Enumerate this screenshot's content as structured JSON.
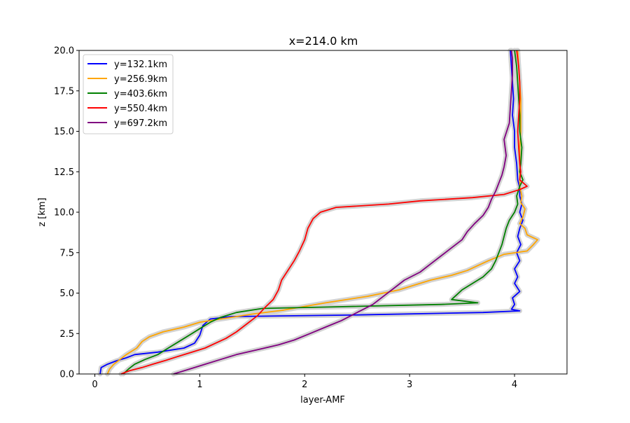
{
  "chart_data": {
    "type": "line",
    "title": "x=214.0 km",
    "xlabel": "layer-AMF",
    "ylabel": "z [km]",
    "xlim": [
      -0.15,
      4.5
    ],
    "ylim": [
      0,
      20
    ],
    "xticks": [
      0,
      1,
      2,
      3,
      4
    ],
    "xtick_labels": [
      "0",
      "1",
      "2",
      "3",
      "4"
    ],
    "yticks": [
      0,
      2.5,
      5,
      7.5,
      10,
      12.5,
      15,
      17.5,
      20
    ],
    "ytick_labels": [
      "0.0",
      "2.5",
      "5.0",
      "7.5",
      "10.0",
      "12.5",
      "15.0",
      "17.5",
      "20.0"
    ],
    "grid": false,
    "legend_position": "top-left",
    "uncertainty_band_color": "#d3d3d3",
    "series": [
      {
        "name": "y=132.1km",
        "color": "#0000ff",
        "points": [
          [
            0.05,
            0
          ],
          [
            0.06,
            0.4
          ],
          [
            0.12,
            0.6
          ],
          [
            0.2,
            0.8
          ],
          [
            0.3,
            1.0
          ],
          [
            0.38,
            1.2
          ],
          [
            0.6,
            1.35
          ],
          [
            0.85,
            1.6
          ],
          [
            0.95,
            1.9
          ],
          [
            1.0,
            2.4
          ],
          [
            1.03,
            3.0
          ],
          [
            1.1,
            3.4
          ],
          [
            1.3,
            3.55
          ],
          [
            2.5,
            3.65
          ],
          [
            3.7,
            3.8
          ],
          [
            4.05,
            3.9
          ],
          [
            3.97,
            4.0
          ],
          [
            4.0,
            4.3
          ],
          [
            3.98,
            4.7
          ],
          [
            4.05,
            5.1
          ],
          [
            4.0,
            5.6
          ],
          [
            4.03,
            6.0
          ],
          [
            4.0,
            6.5
          ],
          [
            4.05,
            7.0
          ],
          [
            4.02,
            7.5
          ],
          [
            4.06,
            8.0
          ],
          [
            4.03,
            8.5
          ],
          [
            4.05,
            9.0
          ],
          [
            4.08,
            9.5
          ],
          [
            4.05,
            10.0
          ],
          [
            4.07,
            10.5
          ],
          [
            4.05,
            11.0
          ],
          [
            4.05,
            11.5
          ],
          [
            4.03,
            12.0
          ],
          [
            4.02,
            13.0
          ],
          [
            4.0,
            14.0
          ],
          [
            4.0,
            15.0
          ],
          [
            3.98,
            16.0
          ],
          [
            3.99,
            17.0
          ],
          [
            3.98,
            18.0
          ],
          [
            3.97,
            19.0
          ],
          [
            3.96,
            20.0
          ]
        ]
      },
      {
        "name": "y=256.9km",
        "color": "#ffa500",
        "points": [
          [
            0.12,
            0
          ],
          [
            0.14,
            0.3
          ],
          [
            0.18,
            0.6
          ],
          [
            0.24,
            0.9
          ],
          [
            0.3,
            1.2
          ],
          [
            0.4,
            1.6
          ],
          [
            0.45,
            2.0
          ],
          [
            0.52,
            2.3
          ],
          [
            0.65,
            2.6
          ],
          [
            0.85,
            2.9
          ],
          [
            1.0,
            3.2
          ],
          [
            1.2,
            3.4
          ],
          [
            1.5,
            3.7
          ],
          [
            1.8,
            3.95
          ],
          [
            2.2,
            4.4
          ],
          [
            2.6,
            4.8
          ],
          [
            2.9,
            5.2
          ],
          [
            3.05,
            5.5
          ],
          [
            3.2,
            5.8
          ],
          [
            3.4,
            6.1
          ],
          [
            3.55,
            6.4
          ],
          [
            3.65,
            6.7
          ],
          [
            3.75,
            7.0
          ],
          [
            3.9,
            7.4
          ],
          [
            4.12,
            7.6
          ],
          [
            4.18,
            8.0
          ],
          [
            4.22,
            8.3
          ],
          [
            4.12,
            8.6
          ],
          [
            4.1,
            9.0
          ],
          [
            4.05,
            9.3
          ],
          [
            4.08,
            9.7
          ],
          [
            4.1,
            10.2
          ],
          [
            4.06,
            10.6
          ],
          [
            4.07,
            11.0
          ],
          [
            4.05,
            11.6
          ],
          [
            4.05,
            12.0
          ],
          [
            4.05,
            13.0
          ],
          [
            4.05,
            14.0
          ],
          [
            4.06,
            15.0
          ],
          [
            4.06,
            16.0
          ],
          [
            4.06,
            17.0
          ],
          [
            4.05,
            18.0
          ],
          [
            4.04,
            19.0
          ],
          [
            4.03,
            20.0
          ]
        ]
      },
      {
        "name": "y=403.6km",
        "color": "#008000",
        "points": [
          [
            0.27,
            0
          ],
          [
            0.32,
            0.3
          ],
          [
            0.38,
            0.6
          ],
          [
            0.48,
            0.9
          ],
          [
            0.6,
            1.2
          ],
          [
            0.7,
            1.6
          ],
          [
            0.8,
            2.0
          ],
          [
            0.9,
            2.4
          ],
          [
            1.0,
            2.8
          ],
          [
            1.1,
            3.2
          ],
          [
            1.2,
            3.5
          ],
          [
            1.35,
            3.8
          ],
          [
            1.6,
            4.05
          ],
          [
            2.3,
            4.15
          ],
          [
            3.3,
            4.3
          ],
          [
            3.65,
            4.4
          ],
          [
            3.4,
            4.6
          ],
          [
            3.45,
            4.9
          ],
          [
            3.5,
            5.2
          ],
          [
            3.6,
            5.6
          ],
          [
            3.7,
            6.0
          ],
          [
            3.78,
            6.5
          ],
          [
            3.82,
            7.0
          ],
          [
            3.85,
            7.5
          ],
          [
            3.88,
            8.0
          ],
          [
            3.9,
            8.5
          ],
          [
            3.92,
            9.0
          ],
          [
            3.95,
            9.5
          ],
          [
            4.0,
            10.0
          ],
          [
            4.03,
            10.5
          ],
          [
            4.02,
            11.0
          ],
          [
            4.05,
            11.6
          ],
          [
            4.08,
            12.0
          ],
          [
            4.05,
            12.5
          ],
          [
            4.06,
            13.0
          ],
          [
            4.07,
            14.0
          ],
          [
            4.05,
            15.0
          ],
          [
            4.05,
            16.0
          ],
          [
            4.04,
            17.0
          ],
          [
            4.03,
            18.0
          ],
          [
            4.02,
            19.0
          ],
          [
            4.0,
            20.0
          ]
        ]
      },
      {
        "name": "y=550.4km",
        "color": "#ff0000",
        "points": [
          [
            0.25,
            0
          ],
          [
            0.33,
            0.2
          ],
          [
            0.45,
            0.4
          ],
          [
            0.55,
            0.6
          ],
          [
            0.68,
            0.85
          ],
          [
            0.8,
            1.1
          ],
          [
            0.9,
            1.3
          ],
          [
            1.05,
            1.6
          ],
          [
            1.15,
            1.9
          ],
          [
            1.25,
            2.2
          ],
          [
            1.35,
            2.6
          ],
          [
            1.45,
            3.1
          ],
          [
            1.55,
            3.6
          ],
          [
            1.62,
            4.1
          ],
          [
            1.7,
            4.6
          ],
          [
            1.75,
            5.2
          ],
          [
            1.78,
            5.8
          ],
          [
            1.85,
            6.5
          ],
          [
            1.9,
            7.0
          ],
          [
            1.95,
            7.6
          ],
          [
            2.0,
            8.3
          ],
          [
            2.03,
            9.0
          ],
          [
            2.08,
            9.6
          ],
          [
            2.15,
            10.0
          ],
          [
            2.3,
            10.3
          ],
          [
            2.8,
            10.5
          ],
          [
            3.1,
            10.7
          ],
          [
            3.6,
            10.9
          ],
          [
            3.9,
            11.1
          ],
          [
            4.05,
            11.4
          ],
          [
            4.12,
            11.6
          ],
          [
            4.05,
            12.0
          ],
          [
            4.06,
            12.5
          ],
          [
            4.05,
            13.0
          ],
          [
            4.04,
            14.0
          ],
          [
            4.03,
            15.0
          ],
          [
            4.04,
            16.0
          ],
          [
            4.05,
            17.0
          ],
          [
            4.05,
            18.0
          ],
          [
            4.04,
            19.0
          ],
          [
            4.02,
            20.0
          ]
        ]
      },
      {
        "name": "y=697.2km",
        "color": "#800080",
        "points": [
          [
            0.75,
            0
          ],
          [
            0.9,
            0.3
          ],
          [
            1.05,
            0.6
          ],
          [
            1.2,
            0.9
          ],
          [
            1.35,
            1.2
          ],
          [
            1.55,
            1.5
          ],
          [
            1.75,
            1.8
          ],
          [
            1.9,
            2.1
          ],
          [
            2.05,
            2.5
          ],
          [
            2.2,
            2.9
          ],
          [
            2.35,
            3.3
          ],
          [
            2.5,
            3.8
          ],
          [
            2.65,
            4.3
          ],
          [
            2.75,
            4.8
          ],
          [
            2.85,
            5.3
          ],
          [
            2.95,
            5.8
          ],
          [
            3.1,
            6.3
          ],
          [
            3.2,
            6.8
          ],
          [
            3.3,
            7.3
          ],
          [
            3.4,
            7.8
          ],
          [
            3.5,
            8.3
          ],
          [
            3.55,
            8.8
          ],
          [
            3.62,
            9.3
          ],
          [
            3.7,
            9.8
          ],
          [
            3.75,
            10.3
          ],
          [
            3.78,
            10.8
          ],
          [
            3.82,
            11.3
          ],
          [
            3.85,
            11.8
          ],
          [
            3.88,
            12.3
          ],
          [
            3.9,
            12.8
          ],
          [
            3.92,
            13.5
          ],
          [
            3.9,
            14.5
          ],
          [
            3.95,
            15.5
          ],
          [
            3.96,
            16.5
          ],
          [
            3.97,
            17.5
          ],
          [
            3.98,
            18.5
          ],
          [
            3.98,
            19.5
          ],
          [
            3.97,
            20.0
          ]
        ]
      }
    ]
  }
}
